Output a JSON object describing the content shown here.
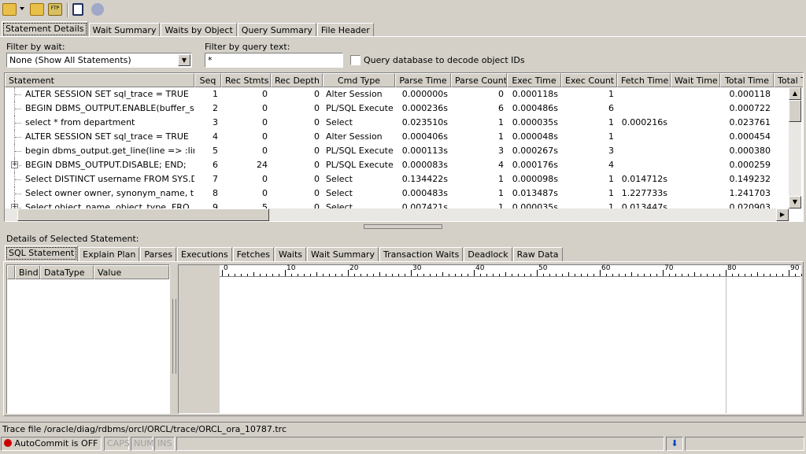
{
  "toolbar": {
    "icons": [
      "open-folder-icon",
      "dropdown-arrow-icon",
      "reload-icon",
      "ftp-icon",
      "notepad-icon",
      "gears-icon"
    ]
  },
  "main_tabs": [
    "Statement Details",
    "Wait Summary",
    "Waits by Object",
    "Query Summary",
    "File Header"
  ],
  "filters": {
    "wait_label": "Filter by wait:",
    "wait_value": "None (Show All Statements)",
    "query_label": "Filter by query text:",
    "query_value": "*",
    "decode_label": "Query database to decode object IDs",
    "decode_checked": false
  },
  "columns": [
    "Statement",
    "Seq",
    "Rec Stmts",
    "Rec Depth",
    "Cmd Type",
    "Parse Time",
    "Parse Count",
    "Exec Time",
    "Exec Count",
    "Fetch Time",
    "Wait Time",
    "Total Time",
    "Total T"
  ],
  "rows": [
    [
      "ALTER SESSION SET sql_trace = TRUE",
      "1",
      "0",
      "0",
      "Alter Session",
      "0.000000s",
      "0",
      "0.000118s",
      "1",
      "",
      "",
      "0.000118",
      ""
    ],
    [
      "BEGIN DBMS_OUTPUT.ENABLE(buffer_si...",
      "2",
      "0",
      "0",
      "PL/SQL Execute",
      "0.000236s",
      "6",
      "0.000486s",
      "6",
      "",
      "",
      "0.000722",
      ""
    ],
    [
      "select * from department",
      "3",
      "0",
      "0",
      "Select",
      "0.023510s",
      "1",
      "0.000035s",
      "1",
      "0.000216s",
      "",
      "0.023761",
      ""
    ],
    [
      "ALTER SESSION SET sql_trace = TRUE",
      "4",
      "0",
      "0",
      "Alter Session",
      "0.000406s",
      "1",
      "0.000048s",
      "1",
      "",
      "",
      "0.000454",
      ""
    ],
    [
      "begin dbms_output.get_line(line => :line...",
      "5",
      "0",
      "0",
      "PL/SQL Execute",
      "0.000113s",
      "3",
      "0.000267s",
      "3",
      "",
      "",
      "0.000380",
      ""
    ],
    [
      "BEGIN DBMS_OUTPUT.DISABLE; END;",
      "6",
      "24",
      "0",
      "PL/SQL Execute",
      "0.000083s",
      "4",
      "0.000176s",
      "4",
      "",
      "",
      "0.000259",
      ""
    ],
    [
      "Select DISTINCT username FROM SYS.D...",
      "7",
      "0",
      "0",
      "Select",
      "0.134422s",
      "1",
      "0.000098s",
      "1",
      "0.014712s",
      "",
      "0.149232",
      ""
    ],
    [
      "Select   owner owner, synonym_name, t...",
      "8",
      "0",
      "0",
      "Select",
      "0.000483s",
      "1",
      "0.013487s",
      "1",
      "1.227733s",
      "",
      "1.241703",
      ""
    ],
    [
      "Select   object_name, object_type,  FRO...",
      "9",
      "5",
      "0",
      "Select",
      "0.007421s",
      "1",
      "0.000035s",
      "1",
      "0.013447s",
      "",
      "0.020903",
      ""
    ]
  ],
  "expandable_rows": [
    6,
    9
  ],
  "details_label": "Details of Selected Statement:",
  "detail_tabs": [
    "SQL Statement",
    "Explain Plan",
    "Parses",
    "Executions",
    "Fetches",
    "Waits",
    "Wait Summary",
    "Transaction Waits",
    "Deadlock",
    "Raw Data"
  ],
  "bind_columns": [
    "Bind",
    "DataType",
    "Value"
  ],
  "ruler_labels": [
    "0",
    "10",
    "20",
    "30",
    "40",
    "50",
    "60",
    "70",
    "80",
    "90"
  ],
  "trace_file": "Trace file /oracle/diag/rdbms/orcl/ORCL/trace/ORCL_ora_10787.trc",
  "status": {
    "autocommit": "AutoCommit is OFF",
    "caps": "CAPS",
    "num": "NUM",
    "ins": "INS"
  },
  "colors": {
    "autocommit_off": "#cc0000",
    "window_bg": "#d4d0c8"
  }
}
